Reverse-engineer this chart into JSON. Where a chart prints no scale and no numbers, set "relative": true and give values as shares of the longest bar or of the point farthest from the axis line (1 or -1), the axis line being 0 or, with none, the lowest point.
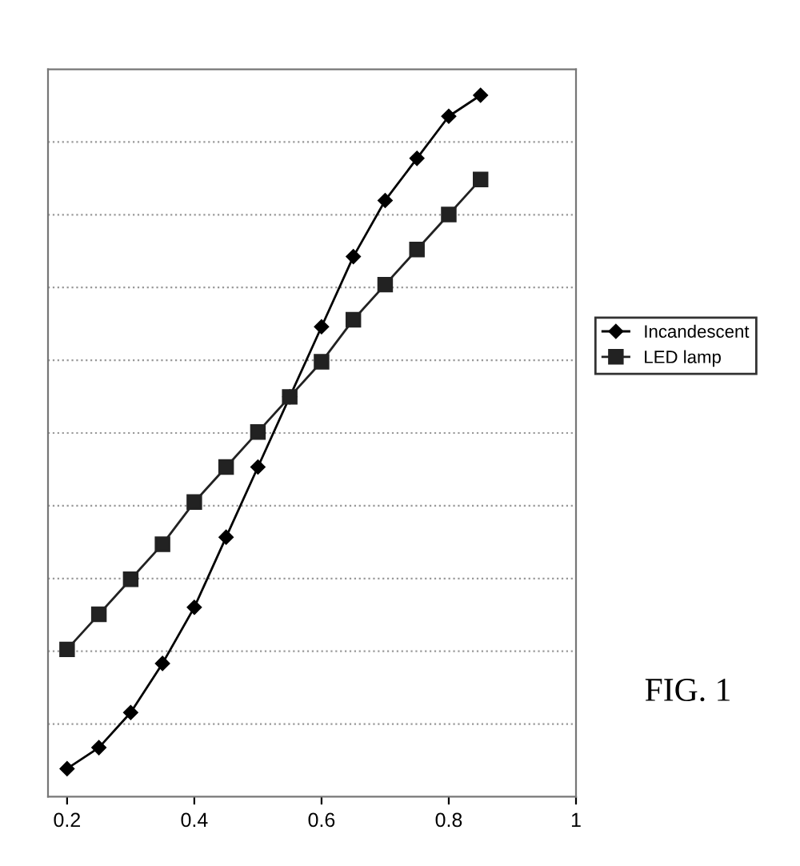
{
  "chart_data": {
    "type": "line",
    "relative": true,
    "x": [
      0.85,
      0.8,
      0.75,
      0.7,
      0.65,
      0.6,
      0.55,
      0.5,
      0.45,
      0.4,
      0.35,
      0.3,
      0.25,
      0.2
    ],
    "xlim": [
      0.17,
      1
    ],
    "xticks": [
      0.2,
      0.4,
      0.6,
      0.8,
      1
    ],
    "series": [
      {
        "name": "Incandescent",
        "color": "#000000",
        "marker": "diamond",
        "values": [
          1.0,
          0.97,
          0.91,
          0.85,
          0.77,
          0.67,
          0.57,
          0.47,
          0.37,
          0.27,
          0.19,
          0.12,
          0.07,
          0.04
        ]
      },
      {
        "name": "LED lamp",
        "color": "#222222",
        "marker": "square",
        "values": [
          0.88,
          0.83,
          0.78,
          0.73,
          0.68,
          0.62,
          0.57,
          0.52,
          0.47,
          0.42,
          0.36,
          0.31,
          0.26,
          0.21
        ]
      }
    ],
    "grid": "y",
    "legend": "right",
    "line_style": "solid",
    "annotations": [
      "FIG. 1"
    ]
  }
}
